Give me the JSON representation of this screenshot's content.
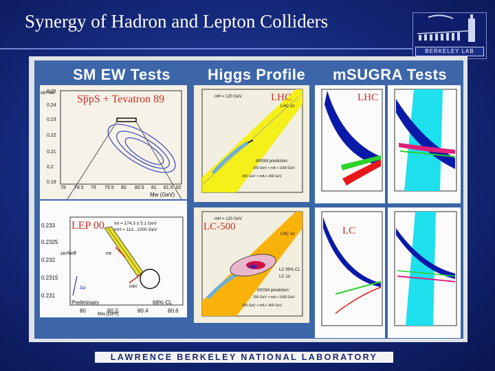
{
  "slide": {
    "title": "Synergy of Hadron and Lepton Colliders",
    "footer": "LAWRENCE BERKELEY NATIONAL LABORATORY",
    "logo_text": "BERKELEY LAB"
  },
  "columns": [
    {
      "title": "SM EW Tests"
    },
    {
      "title": "Higgs Profile"
    },
    {
      "title": "mSUGRA Tests"
    }
  ],
  "sm_top": {
    "label": "Sp̅pS + Tevatron 89",
    "yticks": [
      "0.25",
      "0.24",
      "0.23",
      "0.22",
      "0.21",
      "0.2",
      "0.19"
    ],
    "xticks": [
      "78",
      "78.5",
      "79",
      "79.5",
      "80",
      "80.5",
      "81",
      "81.5",
      "82"
    ],
    "xlabel": "Mw (GeV)",
    "ylabel": "sin²θw"
  },
  "sm_bottom": {
    "label": "LEP 00",
    "yticks": [
      "0.233",
      "0.2325",
      "0.232",
      "0.2315",
      "0.231"
    ],
    "xticks": [
      "80",
      "80.2",
      "80.4",
      "80.6"
    ],
    "xlabel": "Mw [GeV]",
    "ylabel": "sin²θeff",
    "legend_1": "mt = 174.3 ± 5.1 GeV",
    "legend_2": "mH = 113...1000 GeV",
    "note_left": "Preliminary",
    "note_right": "68% CL",
    "mt_label": "mt",
    "mh_label": "mH",
    "alpha_label": "Δα"
  },
  "higgs_top": {
    "label": "LHC",
    "legend_mh": "mH = 120 GeV",
    "legend_conf": "LHC 1σ",
    "mssm": "MSSM prediction:",
    "note_1": "200 GeV < mA < 1000 GeV",
    "note_2": "200 GeV < mA < 400 GeV"
  },
  "higgs_bottom": {
    "label": "LC-500",
    "legend_mh": "mH = 120 GeV",
    "legend_conf": "LHC 1σ",
    "lc95": "LC 95% CL",
    "lc1s": "LC 1σ",
    "mssm": "MSSM prediction:",
    "note_1": "200 GeV < mA < 1000 GeV",
    "note_2": "200 GeV < mA < 400 GeV"
  },
  "msugra_top": {
    "label": "LHC"
  },
  "msugra_bottom": {
    "label": "LC"
  }
}
